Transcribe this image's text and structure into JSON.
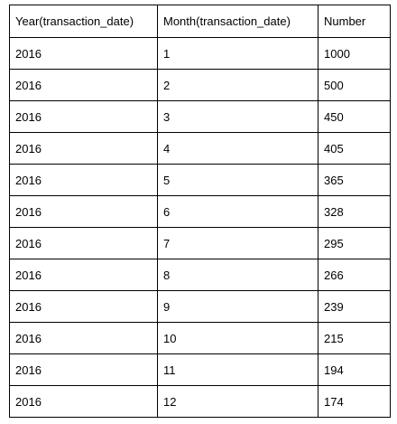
{
  "table": {
    "columns": [
      "Year(transaction_date)",
      "Month(transaction_date)",
      "Number"
    ],
    "rows": [
      [
        "2016",
        "1",
        "1000"
      ],
      [
        "2016",
        "2",
        "500"
      ],
      [
        "2016",
        "3",
        "450"
      ],
      [
        "2016",
        "4",
        "405"
      ],
      [
        "2016",
        "5",
        "365"
      ],
      [
        "2016",
        "6",
        "328"
      ],
      [
        "2016",
        "7",
        "295"
      ],
      [
        "2016",
        "8",
        "266"
      ],
      [
        "2016",
        "9",
        "239"
      ],
      [
        "2016",
        "10",
        "215"
      ],
      [
        "2016",
        "11",
        "194"
      ],
      [
        "2016",
        "12",
        "174"
      ]
    ]
  }
}
